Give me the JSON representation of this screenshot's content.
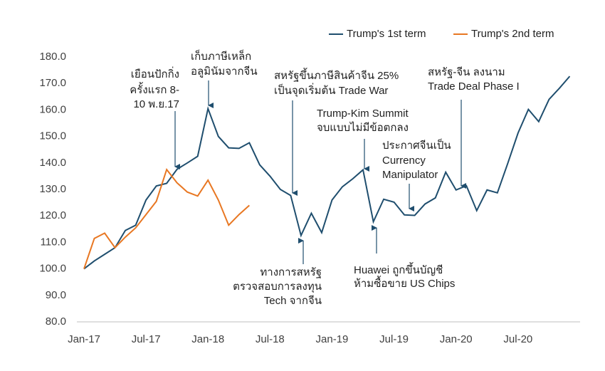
{
  "chart_data": {
    "type": "line",
    "categories": [
      "Jan-17",
      null,
      null,
      null,
      null,
      null,
      "Jul-17",
      null,
      null,
      null,
      null,
      null,
      "Jan-18",
      null,
      null,
      null,
      null,
      null,
      "Jul-18",
      null,
      null,
      null,
      null,
      null,
      "Jan-19",
      null,
      null,
      null,
      null,
      null,
      "Jul-19",
      null,
      null,
      null,
      null,
      null,
      "Jan-20",
      null,
      null,
      null,
      null,
      null,
      "Jul-20",
      null,
      null,
      null,
      null,
      null
    ],
    "series": [
      {
        "name": "Trump's 1st term",
        "color": "#1f4e6e",
        "values": [
          100,
          103,
          105.5,
          108,
          114.5,
          116.5,
          126,
          131.3,
          132.3,
          137.6,
          140,
          142.5,
          160.5,
          150,
          145.7,
          145.5,
          147.6,
          139.3,
          135,
          130,
          127.7,
          112.6,
          121,
          113.7,
          126,
          131,
          134,
          137.4,
          117.8,
          126.3,
          125.2,
          120.4,
          120.2,
          124.5,
          126.8,
          136.5,
          129.8,
          131.4,
          122,
          129.8,
          128.7,
          139.8,
          151.3,
          160.2,
          155.6,
          164,
          168.2,
          172.7
        ]
      },
      {
        "name": "Trump's 2nd term",
        "color": "#e87722",
        "values": [
          100,
          111.5,
          113.5,
          108,
          112,
          115.5,
          120.5,
          125.5,
          137.5,
          132.5,
          129,
          127.5,
          133.5,
          126,
          116.5,
          120.5,
          124,
          null,
          null,
          null,
          null,
          null,
          null,
          null,
          null,
          null,
          null,
          null,
          null,
          null,
          null,
          null,
          null,
          null,
          null,
          null,
          null,
          null,
          null,
          null,
          null,
          null,
          null,
          null,
          null,
          null,
          null,
          null
        ]
      }
    ],
    "ylim": [
      80,
      180
    ],
    "yticks": [
      {
        "value": 80,
        "label": "80.0"
      },
      {
        "value": 90,
        "label": "90.0"
      },
      {
        "value": 100,
        "label": "100.0"
      },
      {
        "value": 110,
        "label": "110.0"
      },
      {
        "value": 120,
        "label": "120.0"
      },
      {
        "value": 130,
        "label": "130.0"
      },
      {
        "value": 140,
        "label": "140.0"
      },
      {
        "value": 150,
        "label": "150.0"
      },
      {
        "value": 160,
        "label": "160.0"
      },
      {
        "value": 170,
        "label": "170.0"
      },
      {
        "value": 180,
        "label": "180.0"
      }
    ],
    "grid": false,
    "legend": "top",
    "annotations": [
      [
        "เยือนปักกิ่ง",
        "ครั้งแรก 8-",
        "10 พ.ย.17"
      ],
      [
        "เก็บภาษีเหล็ก",
        "อลูมินัมจากจีน"
      ],
      [
        "สหรัฐขึ้นภาษีสินค้าจีน 25%",
        "เป็นจุดเริ่มต้น Trade War"
      ],
      [
        "Trump-Kim Summit",
        "จบแบบไม่มีข้อตกลง"
      ],
      [
        "ประกาศจีนเป็น",
        "Currency",
        "Manipulator"
      ],
      [
        "สหรัฐ-จีน ลงนาม",
        "Trade Deal Phase I"
      ],
      [
        "ทางการสหรัฐ",
        "ตรวจสอบการลงทุน",
        "Tech จากจีน"
      ],
      [
        "Huawei ถูกขึ้นบัญชี",
        "ห้ามซื้อขาย US Chips"
      ]
    ]
  }
}
